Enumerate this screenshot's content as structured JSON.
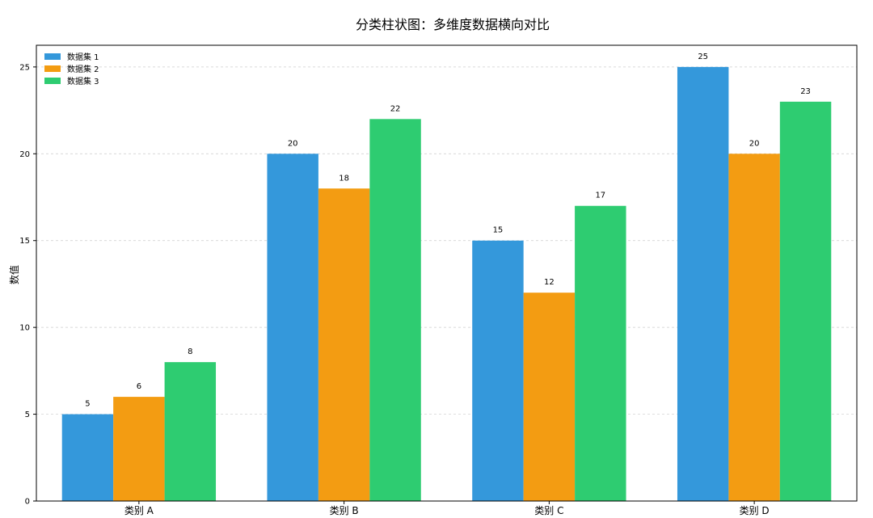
{
  "chart_data": {
    "type": "bar",
    "title": "分类柱状图：多维度数据横向对比",
    "xlabel": "",
    "ylabel": "数值",
    "categories": [
      "类别 A",
      "类别 B",
      "类别 C",
      "类别 D"
    ],
    "series": [
      {
        "name": "数据集 1",
        "values": [
          5,
          20,
          15,
          25
        ],
        "color": "#3498db"
      },
      {
        "name": "数据集 2",
        "values": [
          6,
          18,
          12,
          20
        ],
        "color": "#f39c12"
      },
      {
        "name": "数据集 3",
        "values": [
          8,
          22,
          17,
          23
        ],
        "color": "#2ecc71"
      }
    ],
    "ylim": [
      0,
      26.25
    ],
    "yticks": [
      0,
      5,
      10,
      15,
      20,
      25
    ],
    "grid": "y-dashed",
    "legend_position": "top-left",
    "show_value_labels": true
  }
}
